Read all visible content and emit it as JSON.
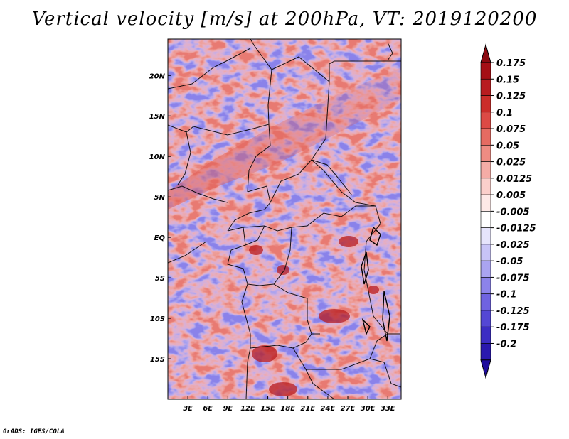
{
  "title": "Vertical velocity [m/s] at 200hPa, VT: 2019120200",
  "credit": "GrADS: IGES/COLA",
  "map": {
    "lon_range": [
      0,
      35
    ],
    "lat_range": [
      -20,
      24.5
    ],
    "lon_ticks": [
      {
        "value": 3,
        "label": "3E"
      },
      {
        "value": 6,
        "label": "6E"
      },
      {
        "value": 9,
        "label": "9E"
      },
      {
        "value": 12,
        "label": "12E"
      },
      {
        "value": 15,
        "label": "15E"
      },
      {
        "value": 18,
        "label": "18E"
      },
      {
        "value": 21,
        "label": "21E"
      },
      {
        "value": 24,
        "label": "24E"
      },
      {
        "value": 27,
        "label": "27E"
      },
      {
        "value": 30,
        "label": "30E"
      },
      {
        "value": 33,
        "label": "33E"
      }
    ],
    "lat_ticks": [
      {
        "value": 20,
        "label": "20N"
      },
      {
        "value": 15,
        "label": "15N"
      },
      {
        "value": 10,
        "label": "10N"
      },
      {
        "value": 5,
        "label": "5N"
      },
      {
        "value": 0,
        "label": "EQ"
      },
      {
        "value": -5,
        "label": "5S"
      },
      {
        "value": -10,
        "label": "10S"
      },
      {
        "value": -15,
        "label": "15S"
      }
    ]
  },
  "colorbar": {
    "levels": [
      {
        "label": "0.175",
        "color": "#a50f15"
      },
      {
        "label": "0.15",
        "color": "#b81c20"
      },
      {
        "label": "0.125",
        "color": "#cb2d2a"
      },
      {
        "label": "0.1",
        "color": "#dc4a45"
      },
      {
        "label": "0.075",
        "color": "#e56b62"
      },
      {
        "label": "0.05",
        "color": "#ee8c83"
      },
      {
        "label": "0.025",
        "color": "#f5aca6"
      },
      {
        "label": "0.0125",
        "color": "#fbcfcb"
      },
      {
        "label": "0.005",
        "color": "#fde9e7"
      },
      {
        "label": "-0.005",
        "color": "#ffffff"
      },
      {
        "label": "-0.0125",
        "color": "#e6e4fc"
      },
      {
        "label": "-0.025",
        "color": "#c8c4f7"
      },
      {
        "label": "-0.05",
        "color": "#aaa4f1"
      },
      {
        "label": "-0.075",
        "color": "#8c83ea"
      },
      {
        "label": "-0.1",
        "color": "#6f63e0"
      },
      {
        "label": "-0.125",
        "color": "#5447d4"
      },
      {
        "label": "-0.175",
        "color": "#3c2dc3"
      },
      {
        "label": "-0.2",
        "color": "#2a18ae"
      }
    ],
    "top_color": "#8b0a10",
    "bottom_color": "#1f0c9c"
  }
}
